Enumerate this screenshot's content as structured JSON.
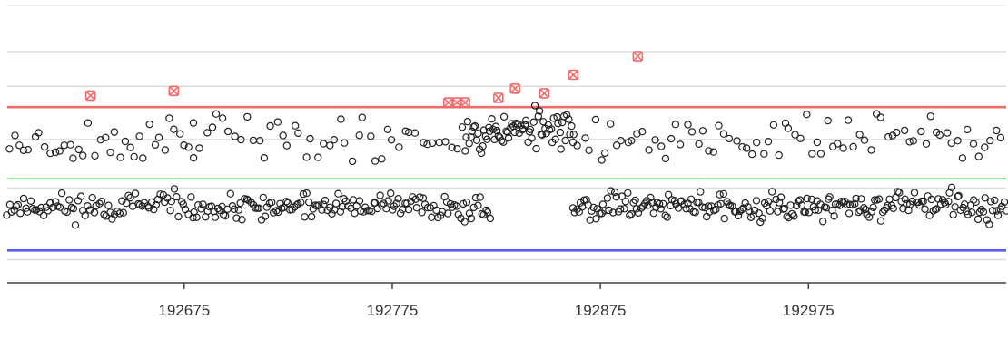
{
  "chart_data": {
    "type": "scatter",
    "title": "",
    "xlabel": "",
    "ylabel": "",
    "xlim": [
      192590,
      193070
    ],
    "ylim": [
      -3,
      9
    ],
    "x_ticks": [
      192675,
      192775,
      192875,
      192975
    ],
    "x_tick_labels": [
      "192675",
      "192775",
      "192875",
      "192975"
    ],
    "y_gridlines": [
      -2.0,
      1.1,
      3.2,
      5.5,
      7.0
    ],
    "grid": "horizontal",
    "reference_lines": [
      {
        "name": "upper",
        "value": 4.6,
        "color": "#f26b6b"
      },
      {
        "name": "center",
        "value": 1.5,
        "color": "#33cc33"
      },
      {
        "name": "lower",
        "value": -1.6,
        "color": "#5b5bf2"
      }
    ],
    "points_style": {
      "in_control": {
        "color": "#222222",
        "marker": "open-circle"
      },
      "out_of_control": {
        "color": "#f26b6b",
        "marker": "x-box"
      }
    },
    "out_of_control_points": {
      "x": [
        192630,
        192670,
        192802,
        192806,
        192810,
        192826,
        192834,
        192848,
        192862,
        192893
      ],
      "y": [
        5.1,
        5.3,
        4.8,
        4.8,
        4.8,
        5.0,
        5.4,
        5.2,
        6.0,
        6.8
      ]
    },
    "in_control_bands": [
      {
        "x_start": 192590,
        "x_end": 192680,
        "step": 1.1,
        "y_mean": 0.3,
        "y_spread": 0.55,
        "seed": 11
      },
      {
        "x_start": 192591,
        "x_end": 192680,
        "step": 2.4,
        "y_mean": 3.1,
        "y_spread": 0.9,
        "seed": 23
      },
      {
        "x_start": 192680,
        "x_end": 192822,
        "step": 1.0,
        "y_mean": 0.3,
        "y_spread": 0.5,
        "seed": 37
      },
      {
        "x_start": 192680,
        "x_end": 192810,
        "step": 2.8,
        "y_mean": 3.3,
        "y_spread": 0.9,
        "seed": 41
      },
      {
        "x_start": 192810,
        "x_end": 192862,
        "step": 0.7,
        "y_mean": 3.6,
        "y_spread": 0.8,
        "seed": 53
      },
      {
        "x_start": 192862,
        "x_end": 193070,
        "step": 0.9,
        "y_mean": 0.35,
        "y_spread": 0.55,
        "seed": 67
      },
      {
        "x_start": 192862,
        "x_end": 193070,
        "step": 2.6,
        "y_mean": 3.3,
        "y_spread": 0.9,
        "seed": 79
      }
    ]
  }
}
